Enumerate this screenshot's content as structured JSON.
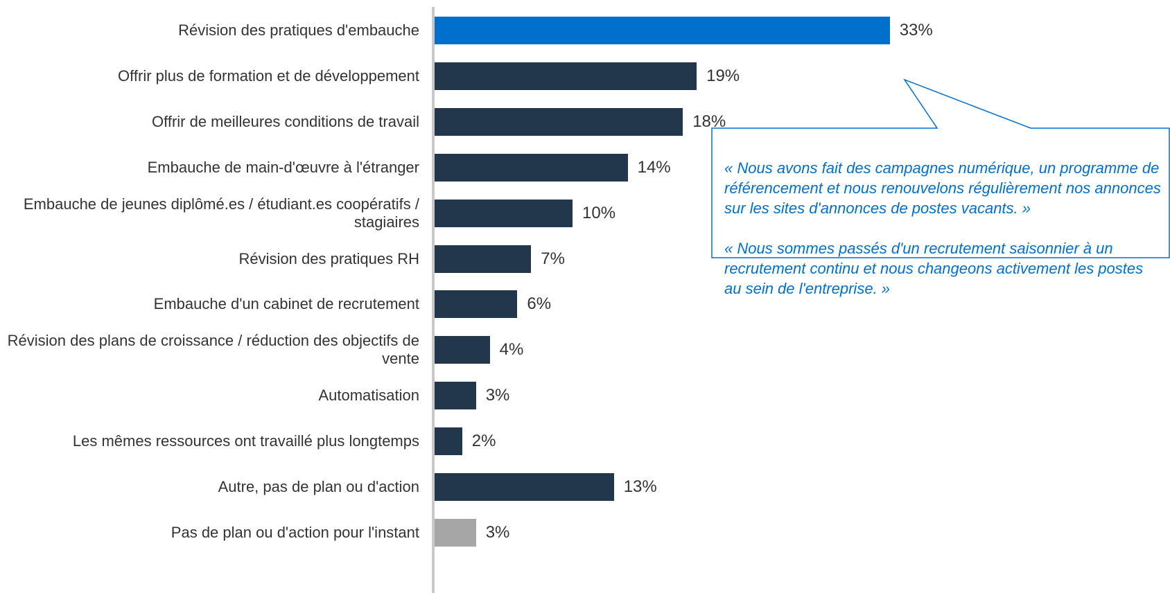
{
  "chart_data": {
    "type": "bar",
    "orientation": "horizontal",
    "categories": [
      "Révision des pratiques d'embauche",
      "Offrir plus de formation et de développement",
      "Offrir de meilleures conditions de travail",
      "Embauche de main-d'œuvre à l'étranger",
      "Embauche de jeunes diplômé.es / étudiant.es coopératifs / stagiaires",
      "Révision des pratiques RH",
      "Embauche d'un cabinet de recrutement",
      "Révision des plans de croissance / réduction des objectifs de vente",
      "Automatisation",
      "Les mêmes ressources ont travaillé plus longtemps",
      "Autre, pas de plan ou d'action",
      "Pas de plan ou d'action pour l'instant"
    ],
    "values": [
      33,
      19,
      18,
      14,
      10,
      7,
      6,
      4,
      3,
      2,
      13,
      3
    ],
    "value_labels": [
      "33%",
      "19%",
      "18%",
      "14%",
      "10%",
      "7%",
      "6%",
      "4%",
      "3%",
      "2%",
      "13%",
      "3%"
    ],
    "colors": [
      "#0070cc",
      "#22364c",
      "#22364c",
      "#22364c",
      "#22364c",
      "#22364c",
      "#22364c",
      "#22364c",
      "#22364c",
      "#22364c",
      "#22364c",
      "#a6a6a6"
    ],
    "annotations": [
      "« Nous avons fait des campagnes numérique, un programme de référencement et nous renouvelons régulièrement nos annonces sur les sites d'annonces de postes vacants. »",
      "« Nous sommes passés d'un recrutement saisonnier à un recrutement continu et nous changeons activement les postes au sein de l'entreprise. »"
    ]
  }
}
